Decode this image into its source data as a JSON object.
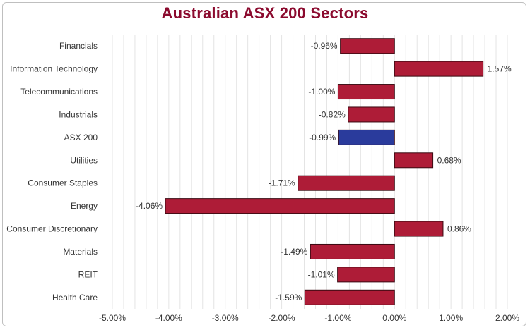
{
  "chart_data": {
    "type": "bar",
    "orientation": "horizontal",
    "title": "Australian ASX 200 Sectors",
    "categories": [
      "Financials",
      "Information Technology",
      "Telecommunications",
      "Industrials",
      "ASX 200",
      "Utilities",
      "Consumer Staples",
      "Energy",
      "Consumer Discretionary",
      "Materials",
      "REIT",
      "Health Care"
    ],
    "values": [
      -0.96,
      1.57,
      -1.0,
      -0.82,
      -0.99,
      0.68,
      -1.71,
      -4.06,
      0.86,
      -1.49,
      -1.01,
      -1.59
    ],
    "data_labels": [
      "-0.96%",
      "1.57%",
      "-1.00%",
      "-0.82%",
      "-0.99%",
      "0.68%",
      "-1.71%",
      "-4.06%",
      "0.86%",
      "-1.49%",
      "-1.01%",
      "-1.59%"
    ],
    "highlight_category": "ASX 200",
    "xlim": [
      -5,
      2
    ],
    "x_ticks": [
      -5,
      -4,
      -3,
      -2,
      -1,
      0,
      1,
      2
    ],
    "x_tick_labels": [
      "-5.00%",
      "-4.00%",
      "-3.00%",
      "-2.00%",
      "-1.00%",
      "0.00%",
      "1.00%",
      "2.00%"
    ],
    "xlabel": "",
    "ylabel": "",
    "grid": true,
    "legend": false,
    "colors": {
      "bar": "#ae1c37",
      "highlight": "#2a3b9c",
      "bar_edge": "#3a0a12",
      "title": "#8b0a2e",
      "grid": "#e4e4e4"
    }
  }
}
